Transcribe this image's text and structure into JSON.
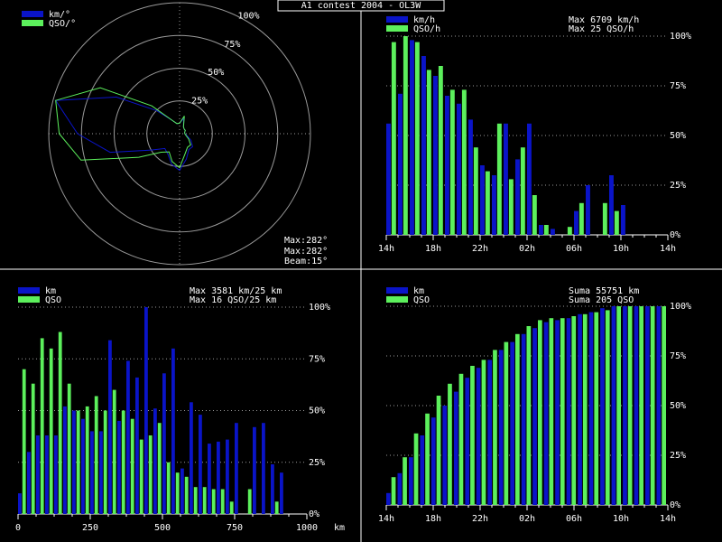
{
  "title": "A1 contest 2004 - OL3W",
  "colors": {
    "background": "#000000",
    "km": "#0a14c8",
    "qso": "#5cf05c",
    "grid": "#9a9a9a",
    "text": "#ffffff",
    "frame": "#ffffff"
  },
  "chart_data": [
    {
      "type": "polar",
      "legend": [
        "km/°",
        "QSO/°"
      ],
      "ring_labels": [
        "25%",
        "50%",
        "75%",
        "100%"
      ],
      "beam_label": "Beam:15°",
      "max_labels": [
        {
          "series": "km",
          "text": "Max:282°"
        },
        {
          "series": "qso",
          "text": "Max:282°"
        }
      ],
      "angles_deg": [
        0,
        15,
        30,
        45,
        60,
        75,
        90,
        105,
        120,
        135,
        150,
        165,
        180,
        195,
        210,
        225,
        240,
        255,
        270,
        285,
        300,
        315,
        330,
        345
      ],
      "series": [
        {
          "name": "km/°",
          "values": [
            0.08,
            0.12,
            0.06,
            0.05,
            0.05,
            0.04,
            0.04,
            0.06,
            0.1,
            0.14,
            0.14,
            0.2,
            0.28,
            0.24,
            0.18,
            0.16,
            0.25,
            0.55,
            0.78,
            0.98,
            0.56,
            0.25,
            0.12,
            0.08
          ]
        },
        {
          "name": "QSO/°",
          "values": [
            0.08,
            0.14,
            0.06,
            0.05,
            0.05,
            0.04,
            0.04,
            0.05,
            0.08,
            0.12,
            0.12,
            0.16,
            0.26,
            0.22,
            0.16,
            0.2,
            0.36,
            0.78,
            0.92,
            0.98,
            0.7,
            0.3,
            0.12,
            0.08
          ]
        }
      ]
    },
    {
      "type": "bar",
      "legend": [
        "km/h",
        "QSO/h"
      ],
      "info": [
        "Max  6709 km/h",
        "Max   25 QSO/h"
      ],
      "xtick_labels": [
        "14h",
        "18h",
        "22h",
        "02h",
        "06h",
        "10h",
        "14h"
      ],
      "ytick_labels": [
        "0%",
        "25%",
        "50%",
        "75%",
        "100%"
      ],
      "series": [
        {
          "name": "km/h",
          "values": [
            56,
            71,
            98,
            90,
            80,
            70,
            66,
            58,
            35,
            30,
            56,
            38,
            56,
            5,
            3,
            0,
            12,
            25,
            0,
            30,
            15,
            0,
            0,
            0
          ]
        },
        {
          "name": "QSO/h",
          "values": [
            97,
            100,
            97,
            83,
            85,
            73,
            73,
            44,
            32,
            56,
            28,
            44,
            20,
            5,
            0,
            4,
            16,
            0,
            16,
            12,
            0,
            0,
            0,
            0
          ]
        }
      ]
    },
    {
      "type": "bar",
      "legend": [
        "km",
        "QSO"
      ],
      "info": [
        "Max  3581 km/25 km",
        "Max   16 QSO/25 km"
      ],
      "xtick_labels": [
        "0",
        "250",
        "500",
        "750",
        "1000"
      ],
      "xlabel": "km",
      "ytick_labels": [
        "0%",
        "25%",
        "50%",
        "75%",
        "100%"
      ],
      "series": [
        {
          "name": "km",
          "values": [
            10,
            30,
            38,
            38,
            38,
            52,
            50,
            46,
            40,
            40,
            84,
            45,
            74,
            66,
            100,
            51,
            68,
            80,
            22,
            54,
            48,
            34,
            35,
            36,
            44,
            0,
            42,
            44,
            24,
            20,
            0,
            0
          ]
        },
        {
          "name": "QSO",
          "values": [
            70,
            63,
            85,
            80,
            88,
            63,
            50,
            52,
            57,
            50,
            60,
            50,
            46,
            36,
            38,
            44,
            25,
            20,
            18,
            13,
            13,
            12,
            12,
            6,
            0,
            12,
            0,
            0,
            6,
            0,
            0,
            0
          ]
        }
      ]
    },
    {
      "type": "bar",
      "legend": [
        "km",
        "QSO"
      ],
      "info": [
        "Suma  55751 km",
        "Suma  205 QSO"
      ],
      "xtick_labels": [
        "14h",
        "18h",
        "22h",
        "02h",
        "06h",
        "10h",
        "14h"
      ],
      "ytick_labels": [
        "0%",
        "25%",
        "50%",
        "75%",
        "100%"
      ],
      "series": [
        {
          "name": "km",
          "values": [
            6,
            16,
            24,
            35,
            44,
            50,
            57,
            64,
            69,
            73,
            78,
            82,
            86,
            89,
            92,
            93,
            94,
            96,
            97,
            99,
            100,
            100,
            100,
            100,
            100
          ]
        },
        {
          "name": "QSO",
          "values": [
            14,
            24,
            36,
            46,
            55,
            61,
            66,
            70,
            73,
            78,
            82,
            86,
            90,
            93,
            94,
            94,
            95,
            96,
            97,
            98,
            100,
            100,
            100,
            100,
            100
          ]
        }
      ]
    }
  ]
}
